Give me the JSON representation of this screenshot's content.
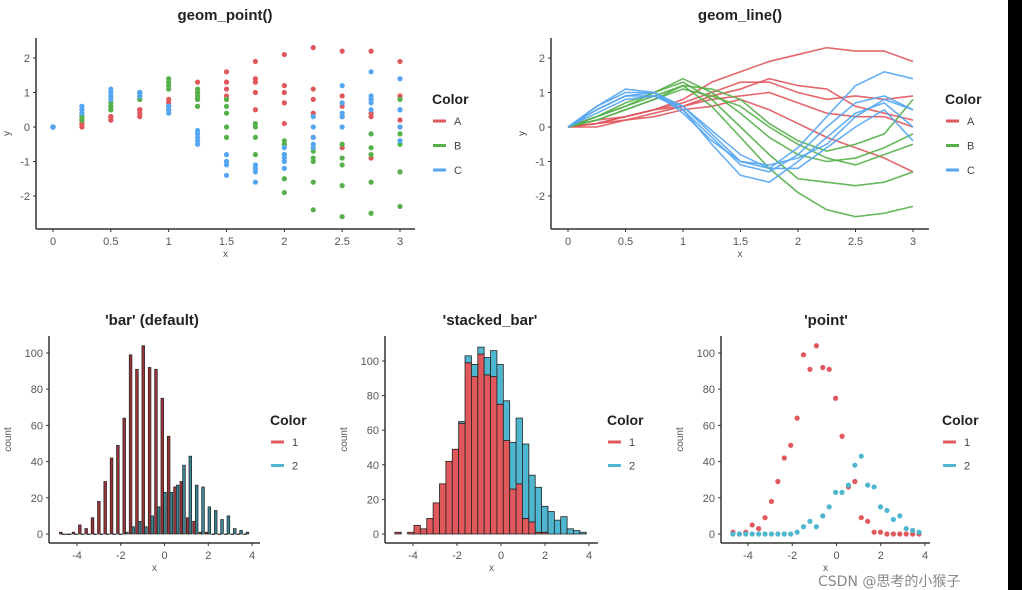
{
  "colors": {
    "A": "#e0575c",
    "B": "#55b04a",
    "C": "#55a6f2",
    "h1": "#e0575c",
    "h2": "#4fb6cf",
    "h1_dodge": "#9a3338",
    "h2_dodge": "#3a8494"
  },
  "watermark": "CSDN @思考的小猴子",
  "chart_data": [
    {
      "type": "scatter",
      "title": "geom_point()",
      "xlabel": "x",
      "ylabel": "y",
      "xlim": [
        0,
        3
      ],
      "ylim": [
        -2.9,
        2.6
      ],
      "xticks": [
        "0",
        "0.5",
        "1",
        "1.5",
        "2",
        "2.5",
        "3"
      ],
      "yticks": [
        "-2",
        "-1",
        "0",
        "1",
        "2"
      ],
      "legend": {
        "title": "Color",
        "items": [
          "A",
          "B",
          "C"
        ],
        "placement": "right"
      },
      "x": [
        0,
        0.25,
        0.5,
        0.75,
        1,
        1.25,
        1.5,
        1.75,
        2,
        2.25,
        2.5,
        2.75,
        3
      ],
      "series": [
        {
          "group": "A",
          "values": [
            0,
            0.2,
            0.3,
            0.5,
            0.8,
            1.3,
            1.6,
            1.9,
            2.1,
            2.3,
            2.2,
            2.2,
            1.9
          ]
        },
        {
          "group": "A",
          "values": [
            0,
            0.1,
            0.3,
            0.5,
            0.7,
            1.0,
            1.3,
            1.3,
            1.0,
            0.8,
            0.9,
            0.8,
            0.9
          ]
        },
        {
          "group": "A",
          "values": [
            0,
            0.1,
            0.2,
            0.4,
            0.6,
            0.9,
            1.1,
            1.4,
            1.2,
            1.1,
            0.6,
            0.4,
            0.2
          ]
        },
        {
          "group": "A",
          "values": [
            0,
            0.1,
            0.3,
            0.5,
            0.6,
            0.8,
            0.9,
            1.0,
            0.7,
            0.4,
            0.3,
            0.3,
            0.0
          ]
        },
        {
          "group": "A",
          "values": [
            0,
            0.0,
            0.2,
            0.3,
            0.5,
            0.6,
            0.8,
            0.5,
            0.1,
            -0.3,
            -0.6,
            -0.9,
            -1.3
          ]
        },
        {
          "group": "B",
          "values": [
            0,
            0.3,
            0.6,
            0.9,
            1.2,
            1.1,
            0.8,
            0.1,
            -0.4,
            -0.7,
            -0.5,
            -0.2,
            0.8
          ]
        },
        {
          "group": "B",
          "values": [
            0,
            0.3,
            0.7,
            1.0,
            1.4,
            1.0,
            0.4,
            -0.3,
            -0.8,
            -1.0,
            -0.9,
            -0.6,
            -0.2
          ]
        },
        {
          "group": "B",
          "values": [
            0,
            0.2,
            0.5,
            0.8,
            1.1,
            0.9,
            0.6,
            0.0,
            -0.5,
            -0.9,
            -1.1,
            -0.8,
            -0.5
          ]
        },
        {
          "group": "B",
          "values": [
            0,
            0.3,
            0.6,
            1.0,
            1.3,
            0.8,
            0.0,
            -0.8,
            -1.5,
            -1.6,
            -1.7,
            -1.6,
            -1.3
          ]
        },
        {
          "group": "B",
          "values": [
            0,
            0.2,
            0.5,
            0.8,
            1.2,
            0.6,
            -0.3,
            -1.2,
            -1.9,
            -2.4,
            -2.6,
            -2.5,
            -2.3
          ]
        },
        {
          "group": "C",
          "values": [
            0,
            0.6,
            1.0,
            1.0,
            0.6,
            -0.2,
            -1.0,
            -1.2,
            -0.6,
            0.3,
            1.2,
            1.6,
            1.4
          ]
        },
        {
          "group": "C",
          "values": [
            0,
            0.5,
            0.9,
            0.9,
            0.5,
            -0.3,
            -1.1,
            -1.3,
            -0.8,
            0.0,
            0.7,
            0.9,
            0.5
          ]
        },
        {
          "group": "C",
          "values": [
            0,
            0.5,
            0.9,
            1.0,
            0.5,
            -0.5,
            -1.4,
            -1.6,
            -1.0,
            -0.3,
            0.4,
            0.7,
            0.0
          ]
        },
        {
          "group": "C",
          "values": [
            0,
            0.6,
            1.1,
            1.0,
            0.4,
            -0.4,
            -1.0,
            -1.1,
            -0.9,
            -0.5,
            0.3,
            0.8,
            0.5
          ]
        },
        {
          "group": "C",
          "values": [
            0,
            0.4,
            0.8,
            0.9,
            0.6,
            -0.1,
            -0.8,
            -1.2,
            -1.2,
            -0.6,
            0.0,
            0.5,
            -0.4
          ]
        }
      ]
    },
    {
      "type": "line",
      "title": "geom_line()",
      "xlabel": "x",
      "ylabel": "y",
      "xlim": [
        0,
        3
      ],
      "ylim": [
        -2.9,
        2.6
      ],
      "xticks": [
        "0",
        "0.5",
        "1",
        "1.5",
        "2",
        "2.5",
        "3"
      ],
      "yticks": [
        "-2",
        "-1",
        "0",
        "1",
        "2"
      ],
      "legend": {
        "title": "Color",
        "items": [
          "A",
          "B",
          "C"
        ],
        "placement": "right"
      },
      "x": [
        0,
        0.25,
        0.5,
        0.75,
        1,
        1.25,
        1.5,
        1.75,
        2,
        2.25,
        2.5,
        2.75,
        3
      ],
      "series": [
        {
          "group": "A",
          "values": [
            0,
            0.2,
            0.3,
            0.5,
            0.8,
            1.3,
            1.6,
            1.9,
            2.1,
            2.3,
            2.2,
            2.2,
            1.9
          ]
        },
        {
          "group": "A",
          "values": [
            0,
            0.1,
            0.3,
            0.5,
            0.7,
            1.0,
            1.3,
            1.3,
            1.0,
            0.8,
            0.9,
            0.8,
            0.9
          ]
        },
        {
          "group": "A",
          "values": [
            0,
            0.1,
            0.2,
            0.4,
            0.6,
            0.9,
            1.1,
            1.4,
            1.2,
            1.1,
            0.6,
            0.4,
            0.2
          ]
        },
        {
          "group": "A",
          "values": [
            0,
            0.1,
            0.3,
            0.5,
            0.6,
            0.8,
            0.9,
            1.0,
            0.7,
            0.4,
            0.3,
            0.3,
            0.0
          ]
        },
        {
          "group": "A",
          "values": [
            0,
            0.0,
            0.2,
            0.3,
            0.5,
            0.6,
            0.8,
            0.5,
            0.1,
            -0.3,
            -0.6,
            -0.9,
            -1.3
          ]
        },
        {
          "group": "B",
          "values": [
            0,
            0.3,
            0.6,
            0.9,
            1.2,
            1.1,
            0.8,
            0.1,
            -0.4,
            -0.7,
            -0.5,
            -0.2,
            0.8
          ]
        },
        {
          "group": "B",
          "values": [
            0,
            0.3,
            0.7,
            1.0,
            1.4,
            1.0,
            0.4,
            -0.3,
            -0.8,
            -1.0,
            -0.9,
            -0.6,
            -0.2
          ]
        },
        {
          "group": "B",
          "values": [
            0,
            0.2,
            0.5,
            0.8,
            1.1,
            0.9,
            0.6,
            0.0,
            -0.5,
            -0.9,
            -1.1,
            -0.8,
            -0.5
          ]
        },
        {
          "group": "B",
          "values": [
            0,
            0.3,
            0.6,
            1.0,
            1.3,
            0.8,
            0.0,
            -0.8,
            -1.5,
            -1.6,
            -1.7,
            -1.6,
            -1.3
          ]
        },
        {
          "group": "B",
          "values": [
            0,
            0.2,
            0.5,
            0.8,
            1.2,
            0.6,
            -0.3,
            -1.2,
            -1.9,
            -2.4,
            -2.6,
            -2.5,
            -2.3
          ]
        },
        {
          "group": "C",
          "values": [
            0,
            0.6,
            1.0,
            1.0,
            0.6,
            -0.2,
            -1.0,
            -1.2,
            -0.6,
            0.3,
            1.2,
            1.6,
            1.4
          ]
        },
        {
          "group": "C",
          "values": [
            0,
            0.5,
            0.9,
            0.9,
            0.5,
            -0.3,
            -1.1,
            -1.3,
            -0.8,
            0.0,
            0.7,
            0.9,
            0.5
          ]
        },
        {
          "group": "C",
          "values": [
            0,
            0.5,
            0.9,
            1.0,
            0.5,
            -0.5,
            -1.4,
            -1.6,
            -1.0,
            -0.3,
            0.4,
            0.7,
            0.0
          ]
        },
        {
          "group": "C",
          "values": [
            0,
            0.6,
            1.1,
            1.0,
            0.4,
            -0.4,
            -1.0,
            -1.1,
            -0.9,
            -0.5,
            0.3,
            0.8,
            0.5
          ]
        },
        {
          "group": "C",
          "values": [
            0,
            0.4,
            0.8,
            0.9,
            0.6,
            -0.1,
            -0.8,
            -1.2,
            -1.2,
            -0.6,
            0.0,
            0.5,
            -0.4
          ]
        }
      ]
    },
    {
      "type": "bar",
      "mode": "dodge",
      "title": "'bar' (default)",
      "xlabel": "x",
      "ylabel": "count",
      "xlim": [
        -5,
        4
      ],
      "ylim": [
        -3,
        108
      ],
      "xticks": [
        "-4",
        "-2",
        "0",
        "2",
        "4"
      ],
      "yticks": [
        "0",
        "20",
        "40",
        "60",
        "80",
        "100"
      ],
      "legend": {
        "title": "Color",
        "items": [
          "1",
          "2"
        ],
        "placement": "right"
      },
      "x": [
        -4.68,
        -4.39,
        -4.1,
        -3.81,
        -3.52,
        -3.23,
        -2.94,
        -2.65,
        -2.36,
        -2.07,
        -1.78,
        -1.49,
        -1.2,
        -0.91,
        -0.62,
        -0.33,
        -0.04,
        0.25,
        0.54,
        0.83,
        1.12,
        1.41,
        1.7,
        1.99,
        2.28,
        2.57,
        2.86,
        3.15,
        3.44,
        3.73
      ],
      "series": [
        {
          "name": "1",
          "values": [
            1,
            0,
            1,
            5,
            3,
            9,
            18,
            29,
            42,
            49,
            64,
            99,
            91,
            104,
            92,
            91,
            75,
            54,
            26,
            29,
            9,
            7,
            1,
            1,
            0,
            0,
            0,
            0,
            0,
            0
          ]
        },
        {
          "name": "2",
          "values": [
            0,
            0,
            0,
            0,
            0,
            0,
            0,
            0,
            0,
            0,
            1,
            4,
            7,
            4,
            10,
            15,
            23,
            23,
            27,
            38,
            43,
            27,
            26,
            15,
            13,
            8,
            10,
            3,
            2,
            1
          ]
        }
      ]
    },
    {
      "type": "bar",
      "mode": "stacked",
      "title": "'stacked_bar'",
      "xlabel": "x",
      "ylabel": "count",
      "xlim": [
        -5,
        4
      ],
      "ylim": [
        -3,
        113
      ],
      "xticks": [
        "-4",
        "-2",
        "0",
        "2",
        "4"
      ],
      "yticks": [
        "0",
        "20",
        "40",
        "60",
        "80",
        "100"
      ],
      "legend": {
        "title": "Color",
        "items": [
          "1",
          "2"
        ],
        "placement": "right"
      },
      "x": [
        -4.68,
        -4.39,
        -4.1,
        -3.81,
        -3.52,
        -3.23,
        -2.94,
        -2.65,
        -2.36,
        -2.07,
        -1.78,
        -1.49,
        -1.2,
        -0.91,
        -0.62,
        -0.33,
        -0.04,
        0.25,
        0.54,
        0.83,
        1.12,
        1.41,
        1.7,
        1.99,
        2.28,
        2.57,
        2.86,
        3.15,
        3.44,
        3.73
      ],
      "series": [
        {
          "name": "1",
          "values": [
            1,
            0,
            1,
            5,
            3,
            9,
            18,
            29,
            42,
            49,
            64,
            99,
            91,
            104,
            92,
            91,
            75,
            54,
            26,
            29,
            9,
            7,
            1,
            1,
            0,
            0,
            0,
            0,
            0,
            0
          ]
        },
        {
          "name": "2",
          "values": [
            0,
            0,
            0,
            0,
            0,
            0,
            0,
            0,
            0,
            0,
            1,
            4,
            7,
            4,
            10,
            15,
            23,
            23,
            27,
            38,
            43,
            27,
            26,
            15,
            13,
            8,
            10,
            3,
            2,
            1
          ]
        }
      ]
    },
    {
      "type": "scatter",
      "title": "'point'",
      "xlabel": "x",
      "ylabel": "count",
      "xlim": [
        -5,
        4
      ],
      "ylim": [
        -3,
        108
      ],
      "xticks": [
        "-4",
        "-2",
        "0",
        "2",
        "4"
      ],
      "yticks": [
        "0",
        "20",
        "40",
        "60",
        "80",
        "100"
      ],
      "legend": {
        "title": "Color",
        "items": [
          "1",
          "2"
        ],
        "placement": "right"
      },
      "x": [
        -4.68,
        -4.39,
        -4.1,
        -3.81,
        -3.52,
        -3.23,
        -2.94,
        -2.65,
        -2.36,
        -2.07,
        -1.78,
        -1.49,
        -1.2,
        -0.91,
        -0.62,
        -0.33,
        -0.04,
        0.25,
        0.54,
        0.83,
        1.12,
        1.41,
        1.7,
        1.99,
        2.28,
        2.57,
        2.86,
        3.15,
        3.44,
        3.73
      ],
      "series": [
        {
          "name": "1",
          "values": [
            1,
            0,
            1,
            5,
            3,
            9,
            18,
            29,
            42,
            49,
            64,
            99,
            91,
            104,
            92,
            91,
            75,
            54,
            26,
            29,
            9,
            7,
            1,
            1,
            0,
            0,
            0,
            0,
            0,
            0
          ]
        },
        {
          "name": "2",
          "values": [
            0,
            0,
            0,
            0,
            0,
            0,
            0,
            0,
            0,
            0,
            1,
            4,
            7,
            4,
            10,
            15,
            23,
            23,
            27,
            38,
            43,
            27,
            26,
            15,
            13,
            8,
            10,
            3,
            2,
            1
          ]
        }
      ]
    }
  ]
}
